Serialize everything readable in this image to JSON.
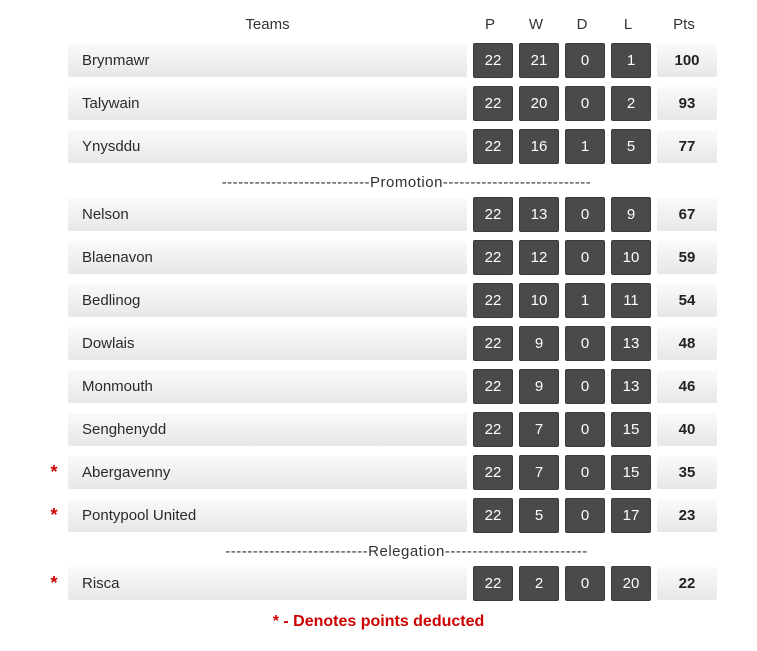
{
  "headers": {
    "teams": "Teams",
    "p": "P",
    "w": "W",
    "d": "D",
    "l": "L",
    "pts": "Pts"
  },
  "sections": [
    {
      "rows": [
        {
          "marker": "",
          "team": "Brynmawr",
          "p": "22",
          "w": "21",
          "d": "0",
          "l": "1",
          "pts": "100"
        },
        {
          "marker": "",
          "team": "Talywain",
          "p": "22",
          "w": "20",
          "d": "0",
          "l": "2",
          "pts": "93"
        },
        {
          "marker": "",
          "team": "Ynysddu",
          "p": "22",
          "w": "16",
          "d": "1",
          "l": "5",
          "pts": "77"
        }
      ],
      "divider": "---------------------------Promotion---------------------------"
    },
    {
      "rows": [
        {
          "marker": "",
          "team": "Nelson",
          "p": "22",
          "w": "13",
          "d": "0",
          "l": "9",
          "pts": "67"
        },
        {
          "marker": "",
          "team": "Blaenavon",
          "p": "22",
          "w": "12",
          "d": "0",
          "l": "10",
          "pts": "59"
        },
        {
          "marker": "",
          "team": "Bedlinog",
          "p": "22",
          "w": "10",
          "d": "1",
          "l": "11",
          "pts": "54"
        },
        {
          "marker": "",
          "team": "Dowlais",
          "p": "22",
          "w": "9",
          "d": "0",
          "l": "13",
          "pts": "48"
        },
        {
          "marker": "",
          "team": "Monmouth",
          "p": "22",
          "w": "9",
          "d": "0",
          "l": "13",
          "pts": "46"
        },
        {
          "marker": "",
          "team": "Senghenydd",
          "p": "22",
          "w": "7",
          "d": "0",
          "l": "15",
          "pts": "40"
        },
        {
          "marker": "*",
          "team": "Abergavenny",
          "p": "22",
          "w": "7",
          "d": "0",
          "l": "15",
          "pts": "35"
        },
        {
          "marker": "*",
          "team": "Pontypool United",
          "p": "22",
          "w": "5",
          "d": "0",
          "l": "17",
          "pts": "23"
        }
      ],
      "divider": "--------------------------Relegation--------------------------"
    },
    {
      "rows": [
        {
          "marker": "*",
          "team": "Risca",
          "p": "22",
          "w": "2",
          "d": "0",
          "l": "20",
          "pts": "22"
        }
      ],
      "divider": ""
    }
  ],
  "footer_note": "* - Denotes points deducted",
  "colors": {
    "stat_cell_bg": "#4a4a4a",
    "stat_cell_text": "#ffffff",
    "row_bg_top": "#fafafb",
    "row_bg_bottom": "#e7e7ea",
    "marker_color": "#cc0000",
    "text_color": "#333333"
  }
}
